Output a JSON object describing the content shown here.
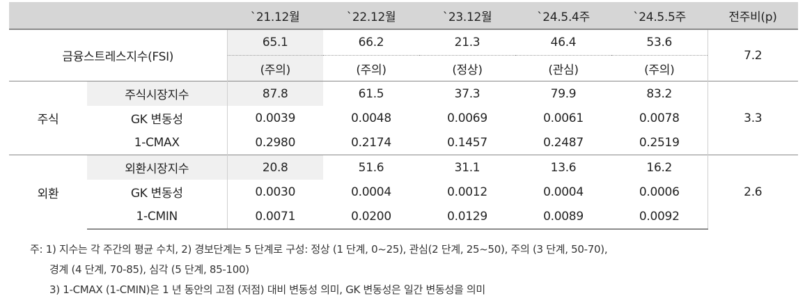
{
  "header": [
    "`21.12월",
    "`22.12월",
    "`23.12월",
    "`24.5.4주",
    "`24.5.5주",
    "전주비(p)"
  ],
  "fsi": {
    "label": "금융스트레스지수(FSI)",
    "values": [
      "65.1",
      "66.2",
      "21.3",
      "46.4",
      "53.6"
    ],
    "stages": [
      "(주의)",
      "(주의)",
      "(정상)",
      "(관심)",
      "(주의)"
    ],
    "change": "7.2"
  },
  "stock": {
    "group": "주식",
    "change": "3.3",
    "rows": [
      {
        "label": "주식시장지수",
        "values": [
          "87.8",
          "61.5",
          "37.3",
          "79.9",
          "83.2"
        ]
      },
      {
        "label": "GK 변동성",
        "values": [
          "0.0039",
          "0.0048",
          "0.0069",
          "0.0061",
          "0.0078"
        ]
      },
      {
        "label": "1-CMAX",
        "values": [
          "0.2980",
          "0.2174",
          "0.1457",
          "0.2487",
          "0.2519"
        ]
      }
    ]
  },
  "fx": {
    "group": "외환",
    "change": "2.6",
    "rows": [
      {
        "label": "외환시장지수",
        "values": [
          "20.8",
          "51.6",
          "31.1",
          "13.6",
          "16.2"
        ]
      },
      {
        "label": "GK 변동성",
        "values": [
          "0.0030",
          "0.0004",
          "0.0012",
          "0.0004",
          "0.0006"
        ]
      },
      {
        "label": "1-CMIN",
        "values": [
          "0.0071",
          "0.0200",
          "0.0129",
          "0.0089",
          "0.0092"
        ]
      }
    ]
  },
  "notes": {
    "line1": "주: 1) 지수는 각 주간의 평균 수치, 2) 경보단계는 5 단계로 구성: 정상 (1 단계, 0~25), 관심(2 단계, 25~50), 주의 (3 단계, 50-70),",
    "line2": "경계 (4 단계, 70-85), 심각 (5 단계, 85-100)",
    "line3": "3) 1-CMAX (1-CMIN)은 1 년 동안의 고점 (저점) 대비 변동성 의미, GK 변동성은 일간 변동성을 의미"
  }
}
